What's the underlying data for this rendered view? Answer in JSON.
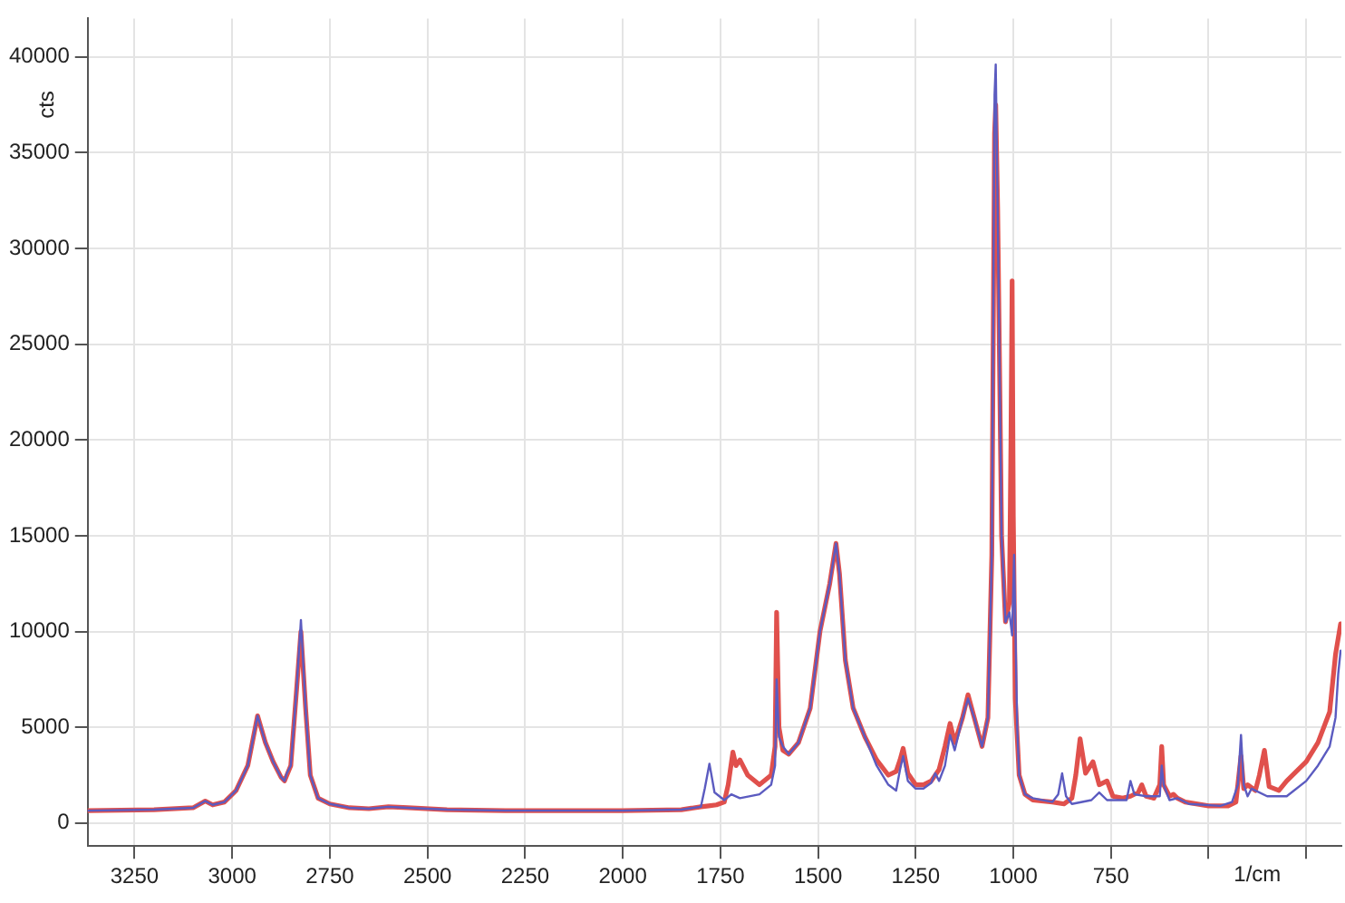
{
  "chart_data": {
    "type": "line",
    "xlabel": "1/cm",
    "ylabel": "cts",
    "xlim": [
      3370,
      160
    ],
    "ylim": [
      -1200,
      42000
    ],
    "xticks": [
      3250,
      3000,
      2750,
      2500,
      2250,
      2000,
      1750,
      1500,
      1250,
      1000,
      750,
      {
        "value": 500,
        "label": null
      },
      {
        "value": 250,
        "label": null
      }
    ],
    "yticks": [
      0,
      5000,
      10000,
      15000,
      20000,
      25000,
      30000,
      35000,
      40000
    ],
    "grid": true,
    "legend": false,
    "marker": "none",
    "line_style": "solid",
    "series": [
      {
        "color": "#e0504c",
        "x": [
          3370,
          3200,
          3100,
          3069,
          3050,
          3020,
          2990,
          2960,
          2935,
          2915,
          2895,
          2875,
          2866,
          2850,
          2835,
          2824,
          2812,
          2800,
          2780,
          2750,
          2700,
          2650,
          2600,
          2550,
          2450,
          2300,
          2000,
          1850,
          1800,
          1780,
          1760,
          1740,
          1730,
          1718,
          1710,
          1700,
          1680,
          1650,
          1620,
          1610,
          1606,
          1600,
          1590,
          1575,
          1550,
          1520,
          1495,
          1470,
          1454,
          1445,
          1430,
          1410,
          1380,
          1350,
          1320,
          1300,
          1290,
          1282,
          1270,
          1250,
          1230,
          1210,
          1190,
          1175,
          1162,
          1150,
          1130,
          1116,
          1100,
          1080,
          1065,
          1055,
          1048,
          1045,
          1040,
          1030,
          1020,
          1010,
          1006,
          1003,
          1000,
          995,
          985,
          970,
          950,
          900,
          870,
          850,
          840,
          829,
          815,
          796,
          780,
          760,
          745,
          720,
          700,
          680,
          671,
          660,
          640,
          625,
          620,
          615,
          600,
          590,
          580,
          560,
          500,
          450,
          430,
          417,
          410,
          400,
          380,
          370,
          357,
          345,
          320,
          300,
          250,
          220,
          190,
          175,
          162
        ],
        "values": [
          650,
          700,
          800,
          1150,
          950,
          1100,
          1700,
          3000,
          5600,
          4200,
          3200,
          2400,
          2200,
          3000,
          7000,
          10000,
          6000,
          2500,
          1300,
          1000,
          800,
          750,
          850,
          800,
          700,
          650,
          650,
          700,
          850,
          900,
          950,
          1100,
          2000,
          3700,
          3000,
          3300,
          2500,
          2000,
          2500,
          4000,
          11000,
          5000,
          3800,
          3600,
          4200,
          6000,
          10000,
          12500,
          14600,
          13000,
          8500,
          6000,
          4500,
          3300,
          2500,
          2700,
          3300,
          3900,
          2600,
          2000,
          2000,
          2200,
          2800,
          4000,
          5200,
          4200,
          5500,
          6700,
          5500,
          4000,
          5500,
          14000,
          36000,
          37500,
          32000,
          15000,
          10500,
          11500,
          20000,
          28300,
          16000,
          6500,
          2500,
          1500,
          1200,
          1100,
          1000,
          1300,
          2500,
          4400,
          2600,
          3200,
          2000,
          2200,
          1400,
          1300,
          1400,
          1600,
          2000,
          1400,
          1300,
          2000,
          4000,
          2000,
          1400,
          1500,
          1300,
          1100,
          900,
          900,
          1100,
          3500,
          1800,
          2000,
          1700,
          2500,
          3800,
          1900,
          1700,
          2200,
          3200,
          4200,
          5800,
          8800,
          10400
        ]
      },
      {
        "color": "#5b5bc0",
        "x": [
          3370,
          3200,
          3100,
          3069,
          3050,
          3020,
          2990,
          2960,
          2935,
          2915,
          2895,
          2875,
          2866,
          2860,
          2850,
          2835,
          2824,
          2812,
          2800,
          2780,
          2750,
          2700,
          2650,
          2600,
          2550,
          2450,
          2300,
          2000,
          1850,
          1800,
          1790,
          1778,
          1765,
          1740,
          1722,
          1700,
          1650,
          1620,
          1610,
          1606,
          1600,
          1590,
          1575,
          1550,
          1520,
          1495,
          1470,
          1454,
          1445,
          1430,
          1410,
          1380,
          1350,
          1320,
          1300,
          1290,
          1282,
          1270,
          1250,
          1230,
          1210,
          1200,
          1190,
          1175,
          1162,
          1150,
          1130,
          1116,
          1100,
          1080,
          1065,
          1055,
          1048,
          1045,
          1040,
          1030,
          1020,
          1010,
          1003,
          998,
          990,
          985,
          970,
          950,
          900,
          885,
          875,
          865,
          850,
          800,
          780,
          760,
          710,
          700,
          690,
          660,
          625,
          620,
          615,
          600,
          580,
          550,
          470,
          440,
          425,
          417,
          410,
          400,
          390,
          350,
          300,
          250,
          220,
          190,
          175,
          168,
          162
        ],
        "values": [
          650,
          700,
          800,
          1150,
          950,
          1100,
          1700,
          3000,
          5600,
          4200,
          3200,
          2400,
          2200,
          2600,
          3000,
          7000,
          10600,
          6000,
          2500,
          1300,
          1000,
          800,
          750,
          850,
          800,
          700,
          650,
          650,
          700,
          850,
          1800,
          3100,
          1600,
          1200,
          1500,
          1300,
          1500,
          2000,
          3000,
          7500,
          4500,
          4000,
          3600,
          4200,
          6000,
          10000,
          12500,
          14600,
          13000,
          8500,
          6000,
          4500,
          3000,
          2000,
          1700,
          2800,
          3500,
          2200,
          1800,
          1800,
          2100,
          2600,
          2200,
          3000,
          4600,
          3800,
          5500,
          6500,
          5500,
          4000,
          5500,
          14000,
          38000,
          39600,
          32000,
          15000,
          10500,
          11000,
          9800,
          14000,
          5000,
          2500,
          1500,
          1300,
          1100,
          1500,
          2600,
          1400,
          1000,
          1200,
          1600,
          1200,
          1200,
          2200,
          1500,
          1400,
          1400,
          3000,
          2000,
          1200,
          1300,
          1000,
          900,
          1100,
          2000,
          4600,
          2000,
          1400,
          1800,
          1400,
          1400,
          2200,
          3000,
          4000,
          5500,
          7800,
          9000
        ]
      }
    ]
  }
}
